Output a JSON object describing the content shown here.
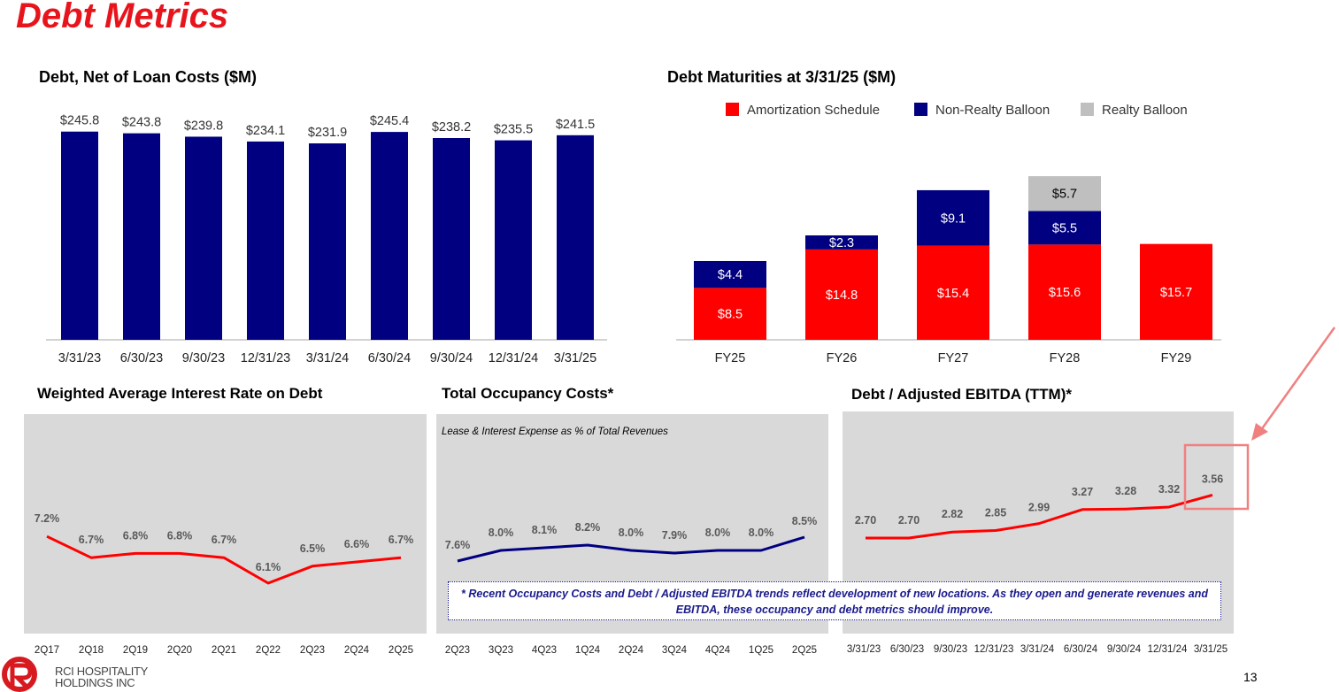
{
  "page": {
    "title": "Debt Metrics",
    "page_number": "13",
    "logo_line1": "RCI HOSPITALITY",
    "logo_line2": "HOLDINGS INC",
    "footnote": "* Recent Occupancy Costs and Debt / Adjusted EBITDA trends reflect development of new locations. As they open and generate revenues and EBITDA, these occupancy and debt metrics should improve."
  },
  "colors": {
    "navy": "#000080",
    "red": "#ff0000",
    "gray": "#bfbfbf",
    "title_red": "#e8141c"
  },
  "chart_data": [
    {
      "type": "bar",
      "title": "Debt, Net of Loan Costs ($M)",
      "categories": [
        "3/31/23",
        "6/30/23",
        "9/30/23",
        "12/31/23",
        "3/31/24",
        "6/30/24",
        "9/30/24",
        "12/31/24",
        "3/31/25"
      ],
      "values": [
        245.8,
        243.8,
        239.8,
        234.1,
        231.9,
        245.4,
        238.2,
        235.5,
        241.5
      ],
      "labels": [
        "$245.8",
        "$243.8",
        "$239.8",
        "$234.1",
        "$231.9",
        "$245.4",
        "$238.2",
        "$235.5",
        "$241.5"
      ],
      "color": "#000080",
      "ylim": [
        0,
        250
      ]
    },
    {
      "type": "bar",
      "stacked": true,
      "title": "Debt Maturities at 3/31/25 ($M)",
      "categories": [
        "FY25",
        "FY26",
        "FY27",
        "FY28",
        "FY29"
      ],
      "legend_position": "top",
      "series": [
        {
          "name": "Amortization Schedule",
          "color": "#ff0000",
          "values": [
            8.5,
            14.8,
            15.4,
            15.6,
            15.7
          ],
          "labels": [
            "$8.5",
            "$14.8",
            "$15.4",
            "$15.6",
            "$15.7"
          ]
        },
        {
          "name": "Non-Realty Balloon",
          "color": "#000080",
          "values": [
            4.4,
            2.3,
            9.1,
            5.5,
            0
          ],
          "labels": [
            "$4.4",
            "$2.3",
            "$9.1",
            "$5.5",
            ""
          ]
        },
        {
          "name": "Realty Balloon",
          "color": "#bfbfbf",
          "values": [
            0,
            0,
            0,
            5.7,
            0
          ],
          "labels": [
            "",
            "",
            "",
            "$5.7",
            ""
          ]
        }
      ],
      "ylim": [
        0,
        30
      ]
    },
    {
      "type": "line",
      "title": "Weighted Average Interest Rate on Debt",
      "categories": [
        "2Q17",
        "2Q18",
        "2Q19",
        "2Q20",
        "2Q21",
        "2Q22",
        "2Q23",
        "2Q24",
        "2Q25"
      ],
      "values": [
        7.2,
        6.7,
        6.8,
        6.8,
        6.7,
        6.1,
        6.5,
        6.6,
        6.7
      ],
      "labels": [
        "7.2%",
        "6.7%",
        "6.8%",
        "6.8%",
        "6.7%",
        "6.1%",
        "6.5%",
        "6.6%",
        "6.7%"
      ],
      "color": "#ff0000"
    },
    {
      "type": "line",
      "title": "Total Occupancy Costs*",
      "subtitle": "Lease & Interest Expense as % of Total Revenues",
      "categories": [
        "2Q23",
        "3Q23",
        "4Q23",
        "1Q24",
        "2Q24",
        "3Q24",
        "4Q24",
        "1Q25",
        "2Q25"
      ],
      "values": [
        7.6,
        8.0,
        8.1,
        8.2,
        8.0,
        7.9,
        8.0,
        8.0,
        8.5
      ],
      "labels": [
        "7.6%",
        "8.0%",
        "8.1%",
        "8.2%",
        "8.0%",
        "7.9%",
        "8.0%",
        "8.0%",
        "8.5%"
      ],
      "color": "#000080"
    },
    {
      "type": "line",
      "title": "Debt / Adjusted EBITDA (TTM)*",
      "categories": [
        "3/31/23",
        "6/30/23",
        "9/30/23",
        "12/31/23",
        "3/31/24",
        "6/30/24",
        "9/30/24",
        "12/31/24",
        "3/31/25"
      ],
      "values": [
        2.7,
        2.7,
        2.82,
        2.85,
        2.99,
        3.27,
        3.28,
        3.32,
        3.56
      ],
      "labels": [
        "2.70",
        "2.70",
        "2.82",
        "2.85",
        "2.99",
        "3.27",
        "3.28",
        "3.32",
        "3.56"
      ],
      "color": "#ff0000"
    }
  ]
}
